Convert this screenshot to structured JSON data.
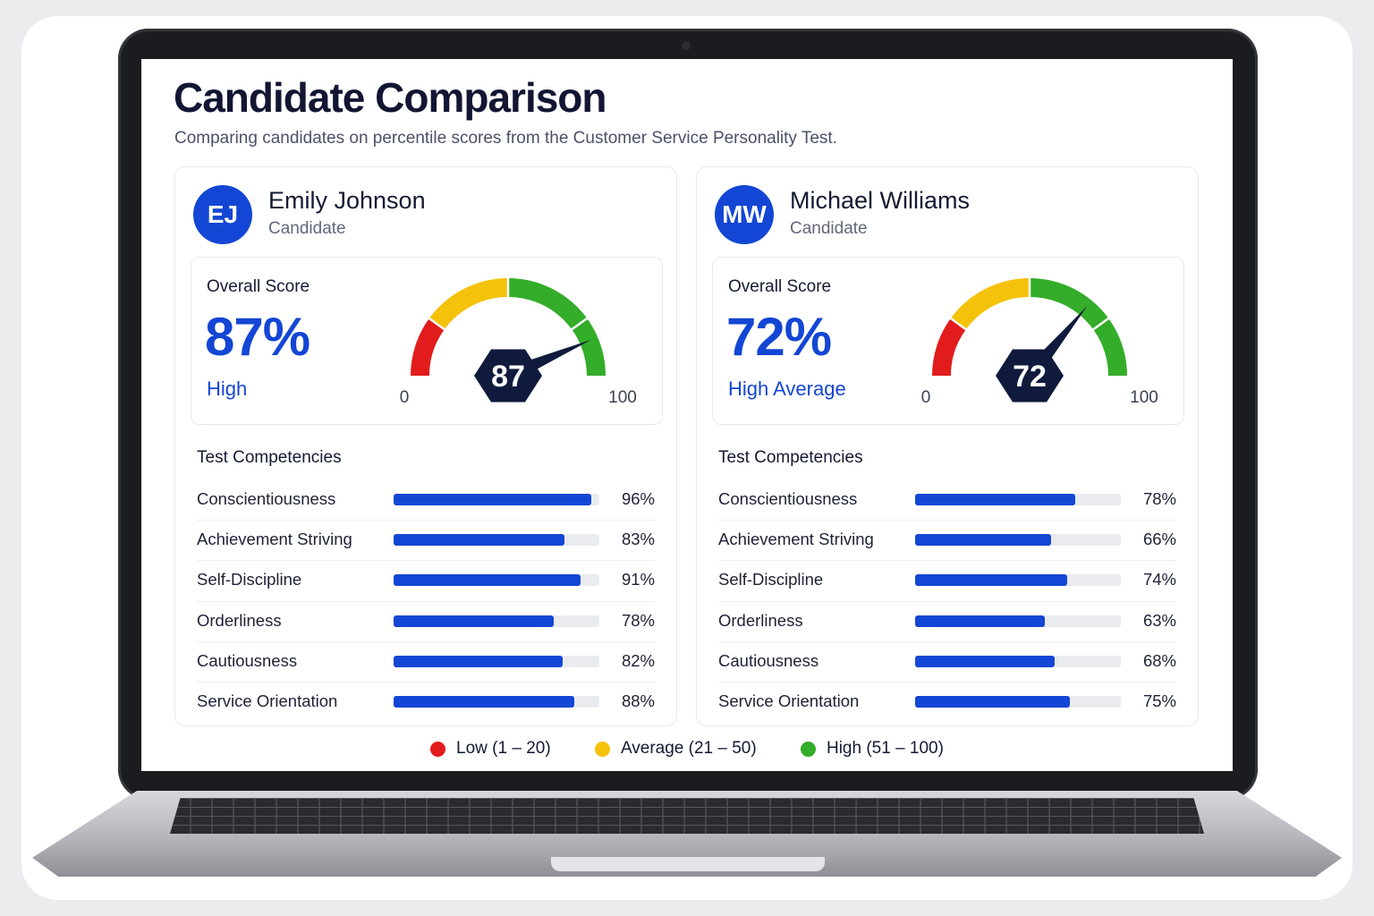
{
  "page": {
    "title": "Candidate Comparison",
    "subtitle": "Comparing candidates on percentile scores from the Customer Service Personality Test."
  },
  "colors": {
    "accent": "#1346d4",
    "low": "#e21c1c",
    "average": "#f5c20b",
    "high": "#33ad2a",
    "needle": "#0f1a3c"
  },
  "candidates": [
    {
      "initials": "EJ",
      "name": "Emily Johnson",
      "role": "Candidate",
      "overall_label": "Overall Score",
      "overall_display": "87%",
      "overall_level": "High",
      "gauge": {
        "value": 87,
        "value_label": "87",
        "min_label": "0",
        "max_label": "100"
      },
      "competencies_title": "Test Competencies",
      "competencies": [
        {
          "label": "Conscientiousness",
          "value": 96,
          "display": "96%"
        },
        {
          "label": "Achievement Striving",
          "value": 83,
          "display": "83%"
        },
        {
          "label": "Self-Discipline",
          "value": 91,
          "display": "91%"
        },
        {
          "label": "Orderliness",
          "value": 78,
          "display": "78%"
        },
        {
          "label": "Cautiousness",
          "value": 82,
          "display": "82%"
        },
        {
          "label": "Service Orientation",
          "value": 88,
          "display": "88%"
        }
      ]
    },
    {
      "initials": "MW",
      "name": "Michael Williams",
      "role": "Candidate",
      "overall_label": "Overall Score",
      "overall_display": "72%",
      "overall_level": "High Average",
      "gauge": {
        "value": 72,
        "value_label": "72",
        "min_label": "0",
        "max_label": "100"
      },
      "competencies_title": "Test Competencies",
      "competencies": [
        {
          "label": "Conscientiousness",
          "value": 78,
          "display": "78%"
        },
        {
          "label": "Achievement Striving",
          "value": 66,
          "display": "66%"
        },
        {
          "label": "Self-Discipline",
          "value": 74,
          "display": "74%"
        },
        {
          "label": "Orderliness",
          "value": 63,
          "display": "63%"
        },
        {
          "label": "Cautiousness",
          "value": 68,
          "display": "68%"
        },
        {
          "label": "Service Orientation",
          "value": 75,
          "display": "75%"
        }
      ]
    }
  ],
  "legend": [
    {
      "label": "Low (1 – 20)",
      "color": "#e21c1c"
    },
    {
      "label": "Average (21 – 50)",
      "color": "#f5c20b"
    },
    {
      "label": "High (51 – 100)",
      "color": "#33ad2a"
    }
  ]
}
